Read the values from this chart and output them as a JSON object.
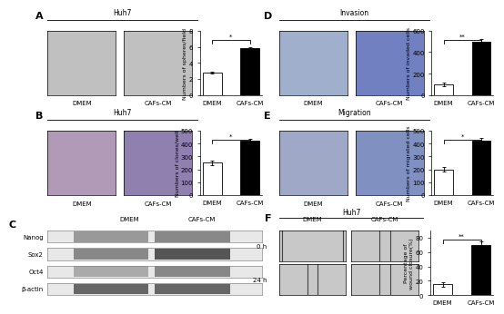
{
  "panel_A_bar": {
    "categories": [
      "DMEM",
      "CAFs-CM"
    ],
    "values": [
      2.8,
      5.8
    ],
    "errors": [
      0.15,
      0.18
    ],
    "colors": [
      "white",
      "black"
    ],
    "ylabel": "Numbers of spheres/field",
    "significance": "*",
    "ylim": [
      0,
      8
    ]
  },
  "panel_B_bar": {
    "categories": [
      "DMEM",
      "CAFs-CM"
    ],
    "values": [
      250,
      420
    ],
    "errors": [
      20,
      18
    ],
    "colors": [
      "white",
      "black"
    ],
    "ylabel": "Numbers of clones/well",
    "significance": "*",
    "ylim": [
      0,
      500
    ]
  },
  "panel_D_bar": {
    "categories": [
      "DMEM",
      "CAFs-CM"
    ],
    "values": [
      100,
      500
    ],
    "errors": [
      15,
      25
    ],
    "colors": [
      "white",
      "black"
    ],
    "ylabel": "Numbers of invaded cells",
    "significance": "**",
    "ylim": [
      0,
      600
    ]
  },
  "panel_E_bar": {
    "categories": [
      "DMEM",
      "CAFs-CM"
    ],
    "values": [
      200,
      420
    ],
    "errors": [
      20,
      20
    ],
    "colors": [
      "white",
      "black"
    ],
    "ylabel": "Numbers of migrated cells",
    "significance": "*",
    "ylim": [
      0,
      500
    ]
  },
  "panel_F_bar": {
    "categories": [
      "DMEM",
      "CAFs-CM"
    ],
    "values": [
      15,
      70
    ],
    "errors": [
      3,
      5
    ],
    "colors": [
      "white",
      "black"
    ],
    "ylabel": "Percentage of\nwound closure(%)",
    "significance": "**",
    "ylim": [
      0,
      90
    ]
  },
  "bg_color": "#ffffff",
  "bar_edge_color": "#000000",
  "label_fontsize": 8,
  "tick_fontsize": 5,
  "ylabel_fontsize": 4.5,
  "title_fontsize": 5.5,
  "western_labels": [
    "Nanog",
    "Sox2",
    "Oct4",
    "β-actin"
  ],
  "western_col_labels": [
    "DMEM",
    "CAFs-CM"
  ],
  "invasion_title": "Invasion",
  "migration_title": "Migration",
  "huh7_label": "Huh7",
  "time_labels": [
    "0 h",
    "24 h"
  ],
  "img_A_color": "#c0c0c0",
  "img_B_color1": "#b09ab8",
  "img_B_color2": "#9080b0",
  "img_D_color1": "#a0b0cc",
  "img_D_color2": "#7080c0",
  "img_E_color1": "#a0a8c8",
  "img_E_color2": "#8090c0",
  "img_F_color": "#c8c8c8",
  "wb_bg": "#e8e8e8",
  "wb_band_light": "#888888",
  "wb_band_dark": "#444444"
}
